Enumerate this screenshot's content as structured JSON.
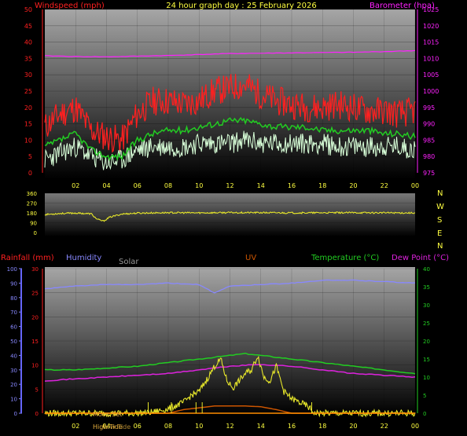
{
  "colors": {
    "red": "#ff2020",
    "green": "#22cc22",
    "gust_white": "#d8ffd8",
    "baro": "#ff22ff",
    "wind_dir": "#e6e62a",
    "humidity": "#8888ff",
    "temperature": "#22cc22",
    "dewpoint": "#dd22dd",
    "solar": "#e6e62a",
    "uv": "#cc5500",
    "label_gray": "#999999"
  },
  "chart_data": [
    {
      "type": "line",
      "title": "24 hour graph day : 25 February 2026",
      "left_label": "Windspeed (mph)",
      "right_label": "Barometer (hpa)",
      "x_ticks": [
        "02",
        "04",
        "06",
        "08",
        "10",
        "12",
        "14",
        "16",
        "18",
        "20",
        "22",
        "00"
      ],
      "ylim": [
        0,
        50
      ],
      "y_ticks": [
        "0",
        "5",
        "10",
        "15",
        "20",
        "25",
        "30",
        "35",
        "40",
        "45",
        "50"
      ],
      "y2lim": [
        975,
        1025
      ],
      "y2_ticks": [
        "975",
        "980",
        "985",
        "990",
        "995",
        "1000",
        "1005",
        "1010",
        "1015",
        "1020",
        "1025"
      ],
      "series": [
        {
          "key": "gust",
          "x": [
            0,
            1,
            2,
            3,
            4,
            5,
            6,
            7,
            8,
            9,
            10,
            11,
            12,
            13,
            14,
            15,
            16,
            17,
            18,
            19,
            20,
            21,
            22,
            23,
            24
          ],
          "values": [
            14,
            18,
            20,
            13,
            11,
            10,
            18,
            22,
            22,
            21,
            22,
            25,
            26,
            27,
            24,
            22,
            21,
            20,
            20,
            21,
            20,
            19,
            19,
            18,
            19
          ]
        },
        {
          "key": "avg",
          "x": [
            0,
            1,
            2,
            3,
            4,
            5,
            6,
            7,
            8,
            9,
            10,
            11,
            12,
            13,
            14,
            15,
            16,
            17,
            18,
            19,
            20,
            21,
            22,
            23,
            24
          ],
          "values": [
            8,
            10,
            12,
            7,
            5,
            5,
            10,
            12,
            13,
            13,
            14,
            15,
            16,
            16,
            15,
            14,
            14,
            14,
            13,
            13,
            13,
            13,
            12,
            12,
            11
          ]
        },
        {
          "key": "wind",
          "x": [
            0,
            1,
            2,
            3,
            4,
            5,
            6,
            7,
            8,
            9,
            10,
            11,
            12,
            13,
            14,
            15,
            16,
            17,
            18,
            19,
            20,
            21,
            22,
            23,
            24
          ],
          "values": [
            4,
            6,
            8,
            5,
            3,
            4,
            7,
            8,
            8,
            8,
            9,
            9,
            9,
            10,
            9,
            9,
            9,
            9,
            9,
            8,
            8,
            8,
            8,
            8,
            7
          ]
        },
        {
          "key": "baro",
          "x": [
            0,
            2,
            4,
            6,
            8,
            10,
            12,
            14,
            16,
            18,
            20,
            22,
            24
          ],
          "values": [
            1010.8,
            1010.6,
            1010.5,
            1010.7,
            1010.9,
            1011.2,
            1011.5,
            1011.6,
            1011.7,
            1011.8,
            1011.9,
            1012.1,
            1012.4
          ]
        }
      ]
    },
    {
      "type": "line",
      "x_ticks": [
        "02",
        "04",
        "06",
        "08",
        "10",
        "12",
        "14",
        "16",
        "18",
        "20",
        "22",
        "00"
      ],
      "ylim": [
        0,
        360
      ],
      "y_ticks": [
        "0",
        "90",
        "180",
        "270",
        "360"
      ],
      "compass": [
        "N",
        "W",
        "S",
        "E",
        "N"
      ],
      "series": [
        {
          "key": "direction",
          "x": [
            0,
            1,
            2,
            3,
            3.4,
            3.8,
            4.2,
            5,
            6,
            8,
            10,
            12,
            14,
            16,
            18,
            20,
            22,
            24
          ],
          "values": [
            165,
            175,
            178,
            172,
            120,
            105,
            140,
            170,
            178,
            182,
            180,
            183,
            182,
            180,
            181,
            182,
            181,
            180
          ]
        }
      ]
    },
    {
      "type": "line",
      "labels": {
        "rainfall": "Rainfall (mm)",
        "humidity": "Humidity",
        "solar": "Solar",
        "uv": "UV",
        "temperature": "Temperature (°C)",
        "dewpoint": "Dew Point (°C)"
      },
      "x_ticks": [
        "02",
        "04",
        "06",
        "08",
        "10",
        "12",
        "14",
        "16",
        "18",
        "20",
        "22",
        "00"
      ],
      "humidity_ylim": [
        0,
        100
      ],
      "humidity_ticks": [
        "0",
        "10",
        "20",
        "30",
        "40",
        "50",
        "60",
        "70",
        "80",
        "90",
        "100"
      ],
      "rain_ylim": [
        0,
        30
      ],
      "rain_ticks": [
        "0",
        "5",
        "10",
        "15",
        "20",
        "25",
        "30"
      ],
      "temp_ylim": [
        0,
        40
      ],
      "temp_ticks": [
        "0",
        "5",
        "10",
        "15",
        "20",
        "25",
        "30",
        "35",
        "40"
      ],
      "annotations": [
        "Moon Set",
        "High Tide",
        "Low Tide"
      ],
      "series": [
        {
          "key": "humidity",
          "x": [
            0,
            2,
            4,
            6,
            8,
            10,
            11,
            12,
            14,
            16,
            18,
            20,
            22,
            24
          ],
          "values": [
            86,
            88,
            89,
            89,
            90,
            89,
            83,
            88,
            89,
            90,
            92,
            92,
            91,
            90
          ]
        },
        {
          "key": "temperature",
          "x": [
            0,
            2,
            4,
            6,
            8,
            10,
            12,
            13,
            14,
            16,
            18,
            20,
            22,
            24
          ],
          "values": [
            12,
            12,
            12.5,
            13,
            14,
            15,
            16,
            16.5,
            16,
            15,
            14,
            13,
            12,
            11
          ]
        },
        {
          "key": "dewpoint",
          "x": [
            0,
            2,
            4,
            6,
            8,
            10,
            12,
            14,
            16,
            18,
            20,
            22,
            24
          ],
          "values": [
            9,
            9.5,
            10,
            10.5,
            11,
            12,
            13,
            13.5,
            13,
            12,
            11,
            10.5,
            10
          ]
        },
        {
          "key": "solar",
          "x": [
            0,
            6,
            7,
            8,
            9,
            9.5,
            10,
            10.6,
            11,
            11.4,
            11.8,
            12.2,
            12.6,
            13,
            13.4,
            13.8,
            14.2,
            14.6,
            15,
            15.5,
            16,
            16.5,
            17,
            17.5,
            18,
            24
          ],
          "values": [
            0,
            0,
            0.3,
            1.2,
            3,
            5,
            6,
            10,
            13,
            15,
            9,
            7,
            9,
            11,
            12,
            16,
            10,
            9,
            13,
            6,
            4,
            3,
            2,
            0,
            0,
            0
          ]
        },
        {
          "key": "uv",
          "x": [
            0,
            8,
            9,
            10,
            11,
            12,
            13,
            14,
            15,
            16,
            24
          ],
          "values": [
            0,
            0,
            1,
            1.5,
            2,
            2,
            2,
            1.8,
            1,
            0,
            0
          ]
        },
        {
          "key": "rain",
          "x": [
            0,
            24
          ],
          "values": [
            0,
            0
          ]
        }
      ]
    }
  ]
}
